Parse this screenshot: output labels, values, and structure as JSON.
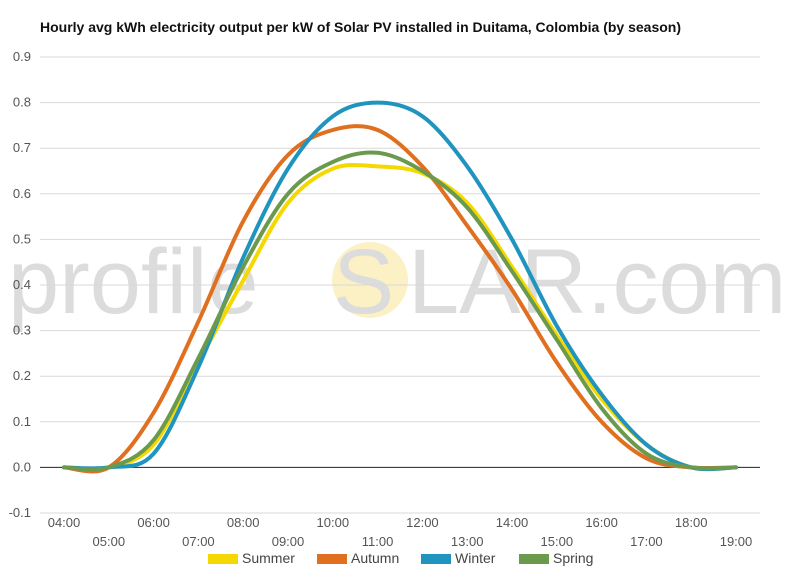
{
  "chart_data": {
    "type": "line",
    "title": "Hourly avg kWh electricity output per kW of Solar PV installed in Duitama, Colombia (by season)",
    "xlabel": "",
    "ylabel": "",
    "ylim": [
      -0.1,
      0.9
    ],
    "yticks": [
      "-0.1",
      "0.0",
      "0.1",
      "0.2",
      "0.3",
      "0.4",
      "0.5",
      "0.6",
      "0.7",
      "0.8",
      "0.9"
    ],
    "x": [
      "04:00",
      "05:00",
      "06:00",
      "07:00",
      "08:00",
      "09:00",
      "10:00",
      "11:00",
      "12:00",
      "13:00",
      "14:00",
      "15:00",
      "16:00",
      "17:00",
      "18:00",
      "19:00"
    ],
    "grid": true,
    "legend_position": "bottom",
    "series": [
      {
        "name": "Summer",
        "color": "#f5d800",
        "values": [
          0.0,
          0.0,
          0.05,
          0.23,
          0.41,
          0.58,
          0.655,
          0.66,
          0.645,
          0.58,
          0.44,
          0.29,
          0.15,
          0.05,
          0.0,
          0.0
        ]
      },
      {
        "name": "Autumn",
        "color": "#e07020",
        "values": [
          0.0,
          0.0,
          0.12,
          0.32,
          0.54,
          0.685,
          0.74,
          0.74,
          0.66,
          0.53,
          0.39,
          0.23,
          0.1,
          0.02,
          0.0,
          0.0
        ]
      },
      {
        "name": "Winter",
        "color": "#1f94bf",
        "values": [
          0.0,
          0.0,
          0.03,
          0.22,
          0.46,
          0.655,
          0.77,
          0.8,
          0.77,
          0.66,
          0.5,
          0.31,
          0.16,
          0.05,
          0.0,
          0.0
        ]
      },
      {
        "name": "Spring",
        "color": "#6b9a4f",
        "values": [
          0.0,
          0.0,
          0.06,
          0.24,
          0.44,
          0.6,
          0.67,
          0.69,
          0.65,
          0.57,
          0.43,
          0.28,
          0.13,
          0.03,
          0.0,
          0.0
        ]
      }
    ]
  },
  "watermark": {
    "left": "profile",
    "middle": "S",
    "right": "LAR.com",
    "sun_color": "#fbf1c5"
  }
}
